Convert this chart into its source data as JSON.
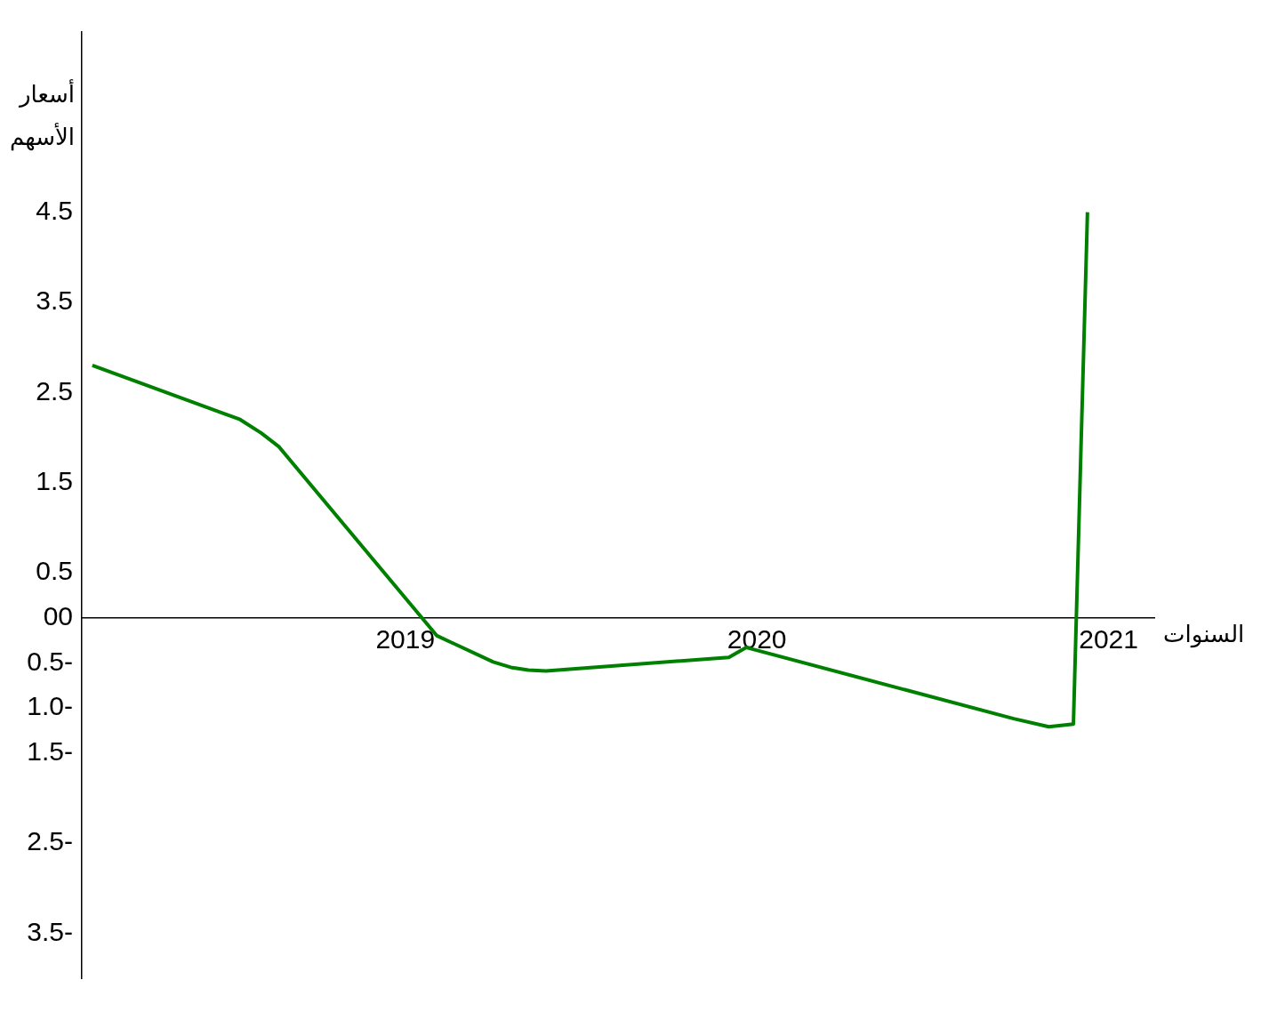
{
  "chart_data": {
    "type": "line",
    "xlabel": "السنوات",
    "ylabel": "أسعار الأسهم",
    "x": [
      2018.11,
      2018.53,
      2018.59,
      2018.64,
      2019.09,
      2019.25,
      2019.3,
      2019.35,
      2019.4,
      2019.92,
      2019.97,
      2020.73,
      2020.83,
      2020.9,
      2020.94
    ],
    "series": [
      {
        "color": "#008000",
        "values": [
          2.8,
          2.2,
          2.05,
          1.9,
          -0.2,
          -0.49,
          -0.55,
          -0.58,
          -0.59,
          -0.44,
          -0.33,
          -1.12,
          -1.21,
          -1.18,
          4.5
        ]
      }
    ],
    "xlim": [
      2018.08,
      2021.13
    ],
    "xticks": [
      2019,
      2020,
      2021
    ],
    "ylim": [
      -4,
      6.5
    ],
    "yticks": [
      4.5,
      3.5,
      2.5,
      1.5,
      0.5,
      {
        "value": 0,
        "label": "00"
      },
      {
        "value": -0.5,
        "label": "0.5-"
      },
      {
        "value": -1,
        "label": "1.0-"
      },
      {
        "value": -1.5,
        "label": "1.5-"
      },
      {
        "value": -2.5,
        "label": "2.5-"
      },
      {
        "value": -3.5,
        "label": "3.5-"
      }
    ],
    "grid": false,
    "legend": false,
    "marker": "none",
    "line_style": "solid"
  }
}
